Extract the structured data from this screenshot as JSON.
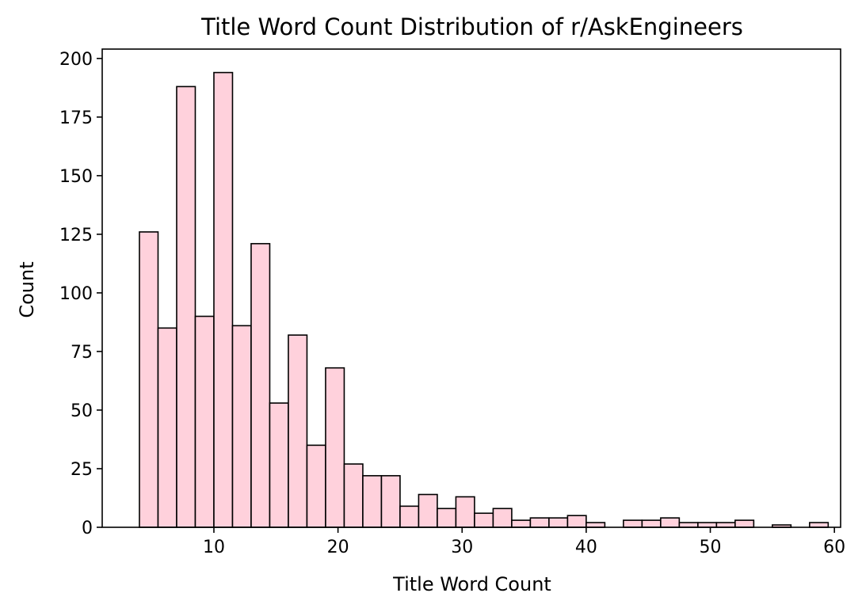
{
  "chart_data": {
    "type": "bar",
    "title": "Title Word Count Distribution of r/AskEngineers",
    "xlabel": "Title Word Count",
    "ylabel": "Count",
    "xlim": [
      1,
      60.5
    ],
    "ylim": [
      0,
      204
    ],
    "xticks": [
      10,
      20,
      30,
      40,
      50,
      60
    ],
    "yticks": [
      0,
      25,
      50,
      75,
      100,
      125,
      150,
      175,
      200
    ],
    "grid": false,
    "legend": "none",
    "bar_fill": "#ffd1dc",
    "bar_edge": "#000000",
    "bins": [
      {
        "x0": 4.0,
        "x1": 5.5,
        "count": 126
      },
      {
        "x0": 5.5,
        "x1": 7.0,
        "count": 85
      },
      {
        "x0": 7.0,
        "x1": 8.5,
        "count": 188
      },
      {
        "x0": 8.5,
        "x1": 10.0,
        "count": 90
      },
      {
        "x0": 10.0,
        "x1": 11.5,
        "count": 194
      },
      {
        "x0": 11.5,
        "x1": 13.0,
        "count": 86
      },
      {
        "x0": 13.0,
        "x1": 14.5,
        "count": 121
      },
      {
        "x0": 14.5,
        "x1": 16.0,
        "count": 53
      },
      {
        "x0": 16.0,
        "x1": 17.5,
        "count": 82
      },
      {
        "x0": 17.5,
        "x1": 19.0,
        "count": 35
      },
      {
        "x0": 19.0,
        "x1": 20.5,
        "count": 68
      },
      {
        "x0": 20.5,
        "x1": 22.0,
        "count": 27
      },
      {
        "x0": 22.0,
        "x1": 23.5,
        "count": 22
      },
      {
        "x0": 23.5,
        "x1": 25.0,
        "count": 22
      },
      {
        "x0": 25.0,
        "x1": 26.5,
        "count": 9
      },
      {
        "x0": 26.5,
        "x1": 28.0,
        "count": 14
      },
      {
        "x0": 28.0,
        "x1": 29.5,
        "count": 8
      },
      {
        "x0": 29.5,
        "x1": 31.0,
        "count": 13
      },
      {
        "x0": 31.0,
        "x1": 32.5,
        "count": 6
      },
      {
        "x0": 32.5,
        "x1": 34.0,
        "count": 8
      },
      {
        "x0": 34.0,
        "x1": 35.5,
        "count": 3
      },
      {
        "x0": 35.5,
        "x1": 37.0,
        "count": 4
      },
      {
        "x0": 37.0,
        "x1": 38.5,
        "count": 4
      },
      {
        "x0": 38.5,
        "x1": 40.0,
        "count": 5
      },
      {
        "x0": 40.0,
        "x1": 41.5,
        "count": 2
      },
      {
        "x0": 41.5,
        "x1": 43.0,
        "count": 0
      },
      {
        "x0": 43.0,
        "x1": 44.5,
        "count": 3
      },
      {
        "x0": 44.5,
        "x1": 46.0,
        "count": 3
      },
      {
        "x0": 46.0,
        "x1": 47.5,
        "count": 4
      },
      {
        "x0": 47.5,
        "x1": 49.0,
        "count": 2
      },
      {
        "x0": 49.0,
        "x1": 50.5,
        "count": 2
      },
      {
        "x0": 50.5,
        "x1": 52.0,
        "count": 2
      },
      {
        "x0": 52.0,
        "x1": 53.5,
        "count": 3
      },
      {
        "x0": 53.5,
        "x1": 55.0,
        "count": 0
      },
      {
        "x0": 55.0,
        "x1": 56.5,
        "count": 1
      },
      {
        "x0": 56.5,
        "x1": 58.0,
        "count": 0
      },
      {
        "x0": 58.0,
        "x1": 59.5,
        "count": 2
      }
    ]
  }
}
